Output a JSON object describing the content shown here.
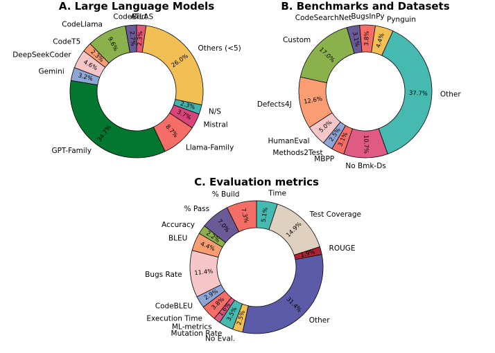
{
  "chart_data": [
    {
      "type": "donut",
      "title": "A. Large Language Models",
      "slices": [
        {
          "label": "ATLAS",
          "value": 2.3,
          "pct_label": "2.3%",
          "color": "#e15874"
        },
        {
          "label": "Others (<5)",
          "value": 26.0,
          "pct_label": "26.0%",
          "color": "#f1bf54"
        },
        {
          "label": "N/S",
          "value": 2.3,
          "pct_label": "2.3%",
          "color": "#3fb5ad"
        },
        {
          "label": "Mistral",
          "value": 3.7,
          "pct_label": "3.7%",
          "color": "#d9457a"
        },
        {
          "label": "Llama-Family",
          "value": 8.7,
          "pct_label": "8.7%",
          "color": "#f46e67"
        },
        {
          "label": "GPT-Family",
          "value": 34.7,
          "pct_label": "34.7%",
          "color": "#03762f"
        },
        {
          "label": "Gemini",
          "value": 3.2,
          "pct_label": "3.2%",
          "color": "#8ea6d6"
        },
        {
          "label": "DeepSeekCoder",
          "value": 4.6,
          "pct_label": "4.6%",
          "color": "#f7c6c8"
        },
        {
          "label": "CodeT5",
          "value": 2.3,
          "pct_label": "2.3%",
          "color": "#fa9d73"
        },
        {
          "label": "CodeLlama",
          "value": 9.6,
          "pct_label": "9.6%",
          "color": "#8bb14d"
        },
        {
          "label": "CodeBert",
          "value": 2.7,
          "pct_label": "2.7%",
          "color": "#6a5b97"
        }
      ]
    },
    {
      "type": "donut",
      "title": "B. Benchmarks and Datasets",
      "slices": [
        {
          "label": "BugsInPy",
          "value": 3.8,
          "pct_label": "3.8%",
          "color": "#f46e67"
        },
        {
          "label": "Pynguin",
          "value": 4.4,
          "pct_label": "4.4%",
          "color": "#f1bf54"
        },
        {
          "label": "Other",
          "value": 37.7,
          "pct_label": "37.7%",
          "color": "#46b9b0"
        },
        {
          "label": "No Bmk-Ds",
          "value": 10.7,
          "pct_label": "10.7%",
          "color": "#df5b84"
        },
        {
          "label": "MBPP",
          "value": 3.1,
          "pct_label": "3.1%",
          "color": "#f46e67"
        },
        {
          "label": "Methods2Test",
          "value": 2.5,
          "pct_label": "2.5%",
          "color": "#8ea6d6"
        },
        {
          "label": "HumanEval",
          "value": 5.0,
          "pct_label": "5.0%",
          "color": "#f7c6c8"
        },
        {
          "label": "Defects4J",
          "value": 12.6,
          "pct_label": "12.6%",
          "color": "#fa9d73"
        },
        {
          "label": "Custom",
          "value": 17.0,
          "pct_label": "17.0%",
          "color": "#8bb14d"
        },
        {
          "label": "CodeSearchNet",
          "value": 3.1,
          "pct_label": "3.1%",
          "color": "#6a5b97"
        }
      ]
    },
    {
      "type": "donut",
      "title": "C. Evaluation metrics",
      "slices": [
        {
          "label": "Time",
          "value": 5.1,
          "pct_label": "5.1%",
          "color": "#46b9b0"
        },
        {
          "label": "Test Coverage",
          "value": 14.9,
          "pct_label": "14.9%",
          "color": "#dfd0bf"
        },
        {
          "label": "ROUGE",
          "value": 1.9,
          "pct_label": "1.9%",
          "color": "#ad2234"
        },
        {
          "label": "Other",
          "value": 31.4,
          "pct_label": "31.4%",
          "color": "#5b5ba8"
        },
        {
          "label": "No Eval.",
          "value": 2.5,
          "pct_label": "2.5%",
          "color": "#f1bf54"
        },
        {
          "label": "Mutation Rate",
          "value": 3.5,
          "pct_label": "3.5%",
          "color": "#46b9b0"
        },
        {
          "label": "ML-metrics",
          "value": 1.6,
          "pct_label": "1.6%",
          "color": "#df5b84"
        },
        {
          "label": "Execution Time",
          "value": 3.8,
          "pct_label": "3.8%",
          "color": "#f46e67"
        },
        {
          "label": "CodeBLEU",
          "value": 2.9,
          "pct_label": "2.9%",
          "color": "#8ea6d6"
        },
        {
          "label": "Bugs Rate",
          "value": 11.4,
          "pct_label": "11.4%",
          "color": "#f7c6c8"
        },
        {
          "label": "BLEU",
          "value": 4.4,
          "pct_label": "4.4%",
          "color": "#fa9d73"
        },
        {
          "label": "Accuracy",
          "value": 2.2,
          "pct_label": "2.2%",
          "color": "#8bb14d"
        },
        {
          "label": "% Pass",
          "value": 7.0,
          "pct_label": "7.0%",
          "color": "#6a5b97"
        },
        {
          "label": "% Build",
          "value": 7.3,
          "pct_label": "7.3%",
          "color": "#f46e67"
        }
      ]
    }
  ]
}
